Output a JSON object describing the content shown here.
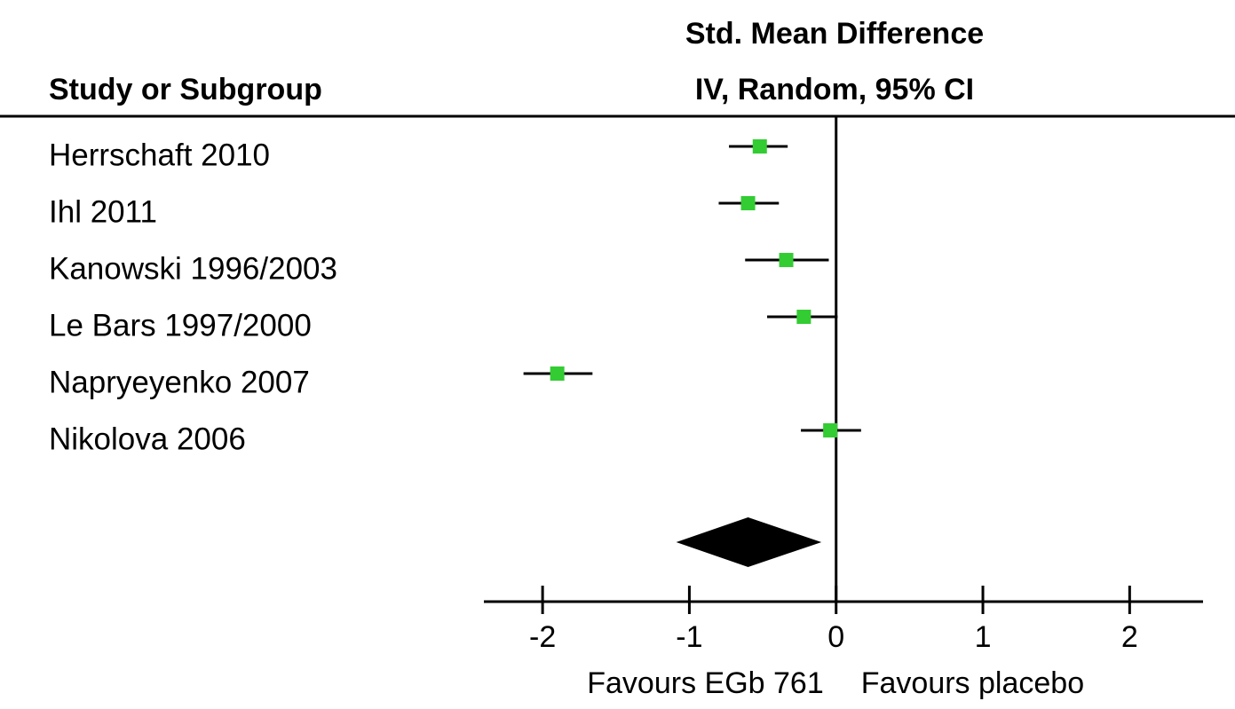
{
  "chart_data": {
    "type": "forest",
    "title": [
      "Std. Mean Difference",
      "IV, Random, 95% CI"
    ],
    "column_header": "Study or Subgroup",
    "categories": [
      "Herrschaft 2010",
      "Ihl 2011",
      "Kanowski 1996/2003",
      "Le Bars 1997/2000",
      "Napryeyenko 2007",
      "Nikolova 2006"
    ],
    "values": [
      -0.52,
      -0.6,
      -0.34,
      -0.22,
      -1.9,
      -0.04
    ],
    "ci_low": [
      -0.73,
      -0.8,
      -0.62,
      -0.47,
      -2.13,
      -0.24
    ],
    "ci_high": [
      -0.33,
      -0.39,
      -0.05,
      0.01,
      -1.66,
      0.17
    ],
    "summary": {
      "value": -0.6,
      "low": -1.09,
      "high": -0.1
    },
    "xlim": [
      -2.4,
      2.5
    ],
    "xticks": [
      -2,
      -1,
      0,
      1,
      2
    ],
    "xlabels": [
      "Favours EGb 761",
      "Favours placebo"
    ],
    "color": "#33cc33",
    "summary_color": "#000000"
  }
}
